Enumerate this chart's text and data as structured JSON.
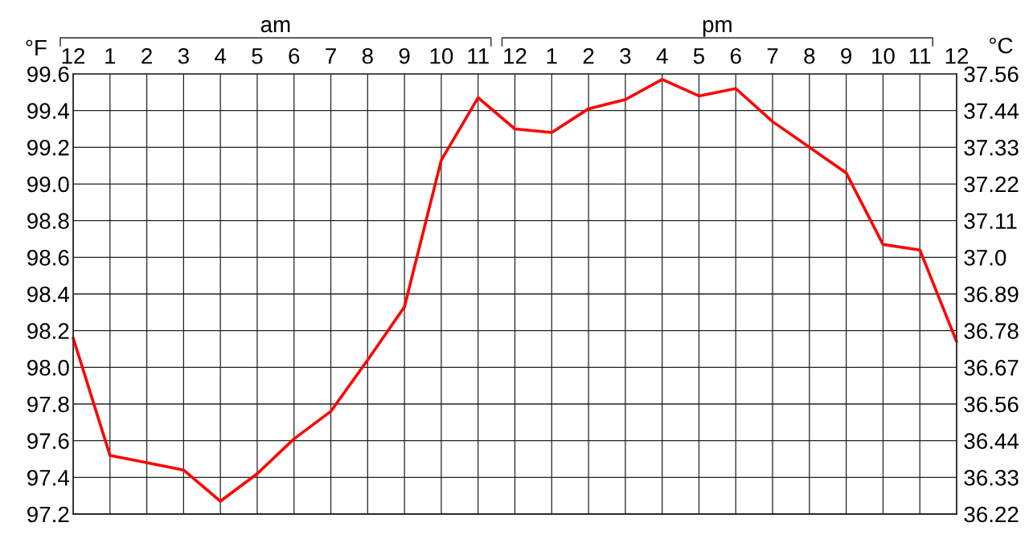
{
  "chart_data": {
    "type": "line",
    "categories": [
      "12",
      "1",
      "2",
      "3",
      "4",
      "5",
      "6",
      "7",
      "8",
      "9",
      "10",
      "11",
      "12",
      "1",
      "2",
      "3",
      "4",
      "5",
      "6",
      "7",
      "8",
      "9",
      "10",
      "11",
      "12"
    ],
    "series": [
      {
        "color": "#ff0000",
        "values": [
          98.16,
          97.52,
          97.48,
          97.44,
          97.27,
          97.42,
          97.61,
          97.76,
          98.04,
          98.33,
          99.13,
          99.47,
          99.3,
          99.28,
          99.41,
          99.46,
          99.57,
          99.48,
          99.52,
          99.34,
          99.2,
          99.06,
          98.67,
          98.64,
          98.14
        ]
      }
    ],
    "ylim": [
      97.2,
      99.6
    ],
    "yticks": [
      97.2,
      97.4,
      97.6,
      97.8,
      {
        "value": 98,
        "label": "98.0"
      },
      98.2,
      98.4,
      98.6,
      98.8,
      {
        "value": 99,
        "label": "99.0"
      },
      99.2,
      99.4,
      99.6
    ],
    "y2lim": [
      36.2222,
      37.5556
    ],
    "y2ticks": [
      {
        "value": 36.2222,
        "label": "36.22"
      },
      {
        "value": 36.3333,
        "label": "36.33"
      },
      {
        "value": 36.4444,
        "label": "36.44"
      },
      {
        "value": 36.5556,
        "label": "36.56"
      },
      {
        "value": 36.6667,
        "label": "36.67"
      },
      {
        "value": 36.7778,
        "label": "36.78"
      },
      {
        "value": 36.8889,
        "label": "36.89"
      },
      {
        "value": 37,
        "label": "37.0"
      },
      {
        "value": 37.1111,
        "label": "37.11"
      },
      {
        "value": 37.2222,
        "label": "37.22"
      },
      {
        "value": 37.3333,
        "label": "37.33"
      },
      {
        "value": 37.4444,
        "label": "37.44"
      },
      {
        "value": 37.5556,
        "label": "37.56"
      }
    ],
    "ylabel": "°F",
    "y2label": "°C",
    "annotations": [
      "am",
      "pm"
    ],
    "grid": true,
    "marker": "none",
    "line_style": "solid"
  }
}
